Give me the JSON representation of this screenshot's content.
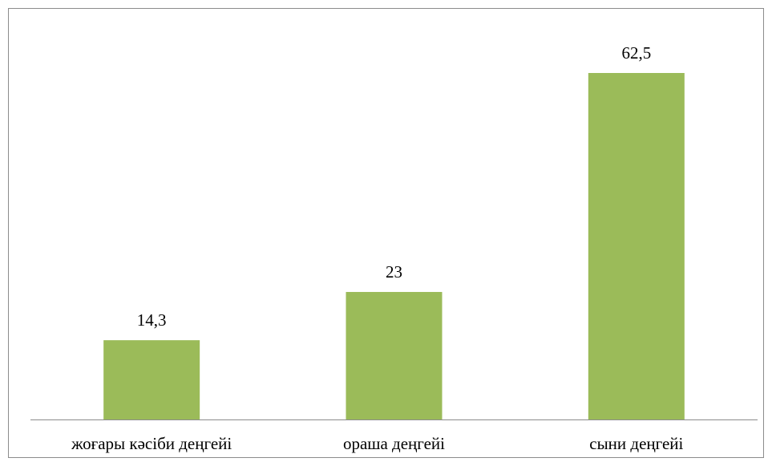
{
  "chart_data": {
    "type": "bar",
    "categories": [
      "жоғары кәсіби деңгейі",
      "ораша деңгейі",
      "сыни деңгейі"
    ],
    "values": [
      14.3,
      23,
      62.5
    ],
    "value_labels": [
      "14,3",
      "23",
      "62,5"
    ],
    "color": "#9bbb59"
  }
}
